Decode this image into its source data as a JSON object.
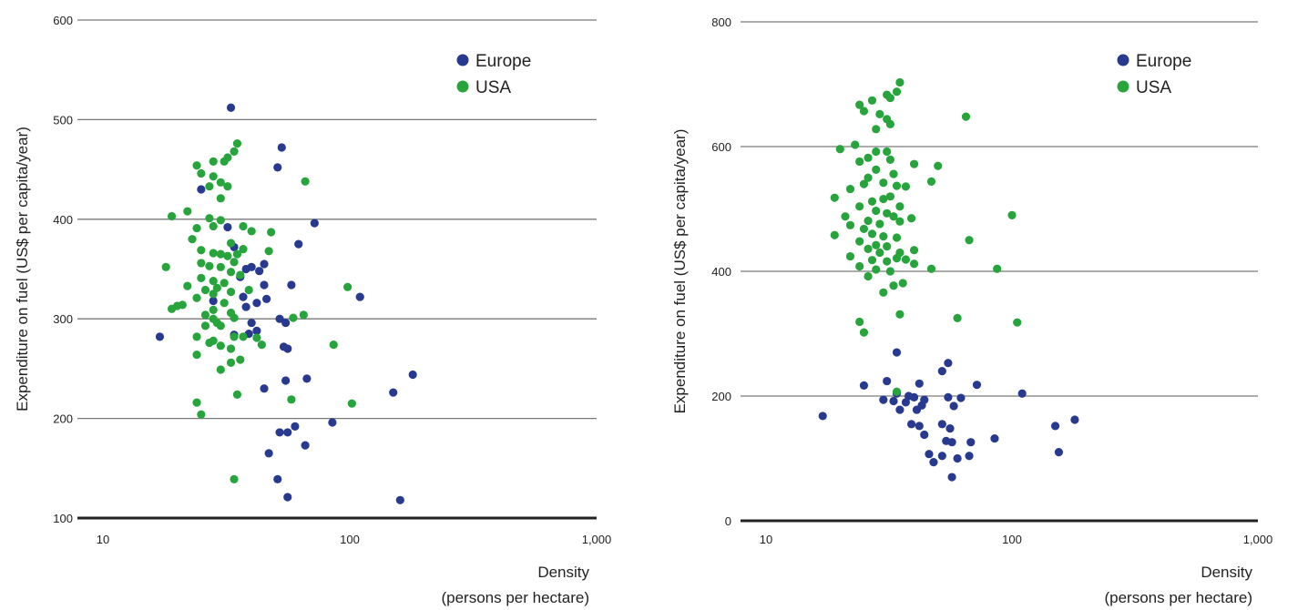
{
  "colors": {
    "europe": "#283a8f",
    "usa": "#27a43b"
  },
  "chart_data": [
    {
      "type": "scatter",
      "x_scale": "log",
      "xlim": [
        10,
        1000
      ],
      "ylim": [
        100,
        600
      ],
      "x_ticks": [
        {
          "value": 10,
          "label": "10"
        },
        {
          "value": 100,
          "label": "100"
        },
        {
          "value": 1000,
          "label": "1,000"
        }
      ],
      "y_ticks": [
        {
          "value": 100,
          "label": "100"
        },
        {
          "value": 200,
          "label": "200"
        },
        {
          "value": 300,
          "label": "300"
        },
        {
          "value": 400,
          "label": "400"
        },
        {
          "value": 500,
          "label": "500"
        },
        {
          "value": 600,
          "label": "600"
        }
      ],
      "ylabel": "Expenditure on fuel (US$ per capita/year)",
      "xlabel": [
        "Density",
        "(persons per hectare)"
      ],
      "grid": true,
      "legend": "top-right",
      "series": [
        {
          "name": "Europe",
          "color_key": "europe",
          "points": [
            [
              33,
              512
            ],
            [
              53,
              472
            ],
            [
              51,
              452
            ],
            [
              25,
              430
            ],
            [
              72,
              396
            ],
            [
              62,
              375
            ],
            [
              32,
              392
            ],
            [
              34,
              372
            ],
            [
              40,
              352
            ],
            [
              43,
              348
            ],
            [
              45,
              355
            ],
            [
              38,
              350
            ],
            [
              36,
              342
            ],
            [
              45,
              334
            ],
            [
              58,
              334
            ],
            [
              37,
              322
            ],
            [
              42,
              316
            ],
            [
              38,
              312
            ],
            [
              46,
              320
            ],
            [
              110,
              322
            ],
            [
              52,
              300
            ],
            [
              55,
              296
            ],
            [
              40,
              296
            ],
            [
              42,
              288
            ],
            [
              39,
              285
            ],
            [
              54,
              272
            ],
            [
              56,
              270
            ],
            [
              34,
              284
            ],
            [
              28,
              318
            ],
            [
              17,
              282
            ],
            [
              55,
              238
            ],
            [
              67,
              240
            ],
            [
              45,
              230
            ],
            [
              180,
              244
            ],
            [
              150,
              226
            ],
            [
              85,
              196
            ],
            [
              60,
              192
            ],
            [
              52,
              186
            ],
            [
              56,
              186
            ],
            [
              66,
              173
            ],
            [
              47,
              165
            ],
            [
              51,
              139
            ],
            [
              56,
              121
            ],
            [
              160,
              118
            ]
          ]
        },
        {
          "name": "USA",
          "color_key": "usa",
          "points": [
            [
              35,
              476
            ],
            [
              34,
              468
            ],
            [
              32,
              462
            ],
            [
              31,
              458
            ],
            [
              28,
              458
            ],
            [
              24,
              454
            ],
            [
              25,
              446
            ],
            [
              28,
              443
            ],
            [
              30,
              437
            ],
            [
              32,
              433
            ],
            [
              66,
              438
            ],
            [
              27,
              433
            ],
            [
              30,
              421
            ],
            [
              22,
              408
            ],
            [
              19,
              403
            ],
            [
              27,
              401
            ],
            [
              30,
              399
            ],
            [
              28,
              393
            ],
            [
              24,
              391
            ],
            [
              40,
              388
            ],
            [
              37,
              393
            ],
            [
              23,
              380
            ],
            [
              33,
              376
            ],
            [
              37,
              370
            ],
            [
              25,
              369
            ],
            [
              28,
              366
            ],
            [
              32,
              363
            ],
            [
              30,
              365
            ],
            [
              35,
              365
            ],
            [
              34,
              357
            ],
            [
              25,
              356
            ],
            [
              27,
              353
            ],
            [
              18,
              352
            ],
            [
              30,
              352
            ],
            [
              33,
              347
            ],
            [
              36,
              344
            ],
            [
              25,
              341
            ],
            [
              28,
              338
            ],
            [
              31,
              336
            ],
            [
              29,
              331
            ],
            [
              22,
              333
            ],
            [
              26,
              329
            ],
            [
              28,
              325
            ],
            [
              33,
              327
            ],
            [
              39,
              329
            ],
            [
              24,
              321
            ],
            [
              31,
              316
            ],
            [
              21,
              314
            ],
            [
              19,
              310
            ],
            [
              28,
              309
            ],
            [
              33,
              306
            ],
            [
              34,
              301
            ],
            [
              26,
              304
            ],
            [
              28,
              300
            ],
            [
              29,
              296
            ],
            [
              26,
              293
            ],
            [
              30,
              293
            ],
            [
              24,
              282
            ],
            [
              28,
              278
            ],
            [
              34,
              282
            ],
            [
              37,
              282
            ],
            [
              42,
              281
            ],
            [
              30,
              273
            ],
            [
              27,
              276
            ],
            [
              33,
              270
            ],
            [
              44,
              274
            ],
            [
              20,
              313
            ],
            [
              24,
              264
            ],
            [
              36,
              259
            ],
            [
              33,
              256
            ],
            [
              30,
              249
            ],
            [
              48,
              387
            ],
            [
              47,
              368
            ],
            [
              65,
              304
            ],
            [
              59,
              301
            ],
            [
              98,
              332
            ],
            [
              86,
              274
            ],
            [
              35,
              224
            ],
            [
              58,
              219
            ],
            [
              102,
              215
            ],
            [
              24,
              216
            ],
            [
              25,
              204
            ],
            [
              34,
              139
            ]
          ]
        }
      ]
    },
    {
      "type": "scatter",
      "x_scale": "log",
      "xlim": [
        10,
        1000
      ],
      "ylim": [
        0,
        800
      ],
      "x_ticks": [
        {
          "value": 10,
          "label": "10"
        },
        {
          "value": 100,
          "label": "100"
        },
        {
          "value": 1000,
          "label": "1,000"
        }
      ],
      "y_ticks": [
        {
          "value": 0,
          "label": "0"
        },
        {
          "value": 200,
          "label": "200"
        },
        {
          "value": 400,
          "label": "400"
        },
        {
          "value": 600,
          "label": "600"
        },
        {
          "value": 800,
          "label": "800"
        }
      ],
      "ylabel": "Expenditure on fuel (US$ per capita/year)",
      "xlabel": [
        "Density",
        "(persons per hectare)"
      ],
      "grid": true,
      "legend": "top-right",
      "series": [
        {
          "name": "Europe",
          "color_key": "europe",
          "points": [
            [
              34,
              270
            ],
            [
              55,
              253
            ],
            [
              52,
              240
            ],
            [
              31,
              224
            ],
            [
              42,
              220
            ],
            [
              72,
              218
            ],
            [
              25,
              217
            ],
            [
              34,
              204
            ],
            [
              110,
              204
            ],
            [
              38,
              200
            ],
            [
              40,
              198
            ],
            [
              44,
              194
            ],
            [
              30,
              194
            ],
            [
              33,
              192
            ],
            [
              37,
              190
            ],
            [
              55,
              198
            ],
            [
              62,
              197
            ],
            [
              43,
              185
            ],
            [
              41,
              178
            ],
            [
              58,
              184
            ],
            [
              35,
              178
            ],
            [
              17,
              168
            ],
            [
              39,
              155
            ],
            [
              42,
              152
            ],
            [
              52,
              155
            ],
            [
              56,
              148
            ],
            [
              150,
              152
            ],
            [
              180,
              162
            ],
            [
              44,
              138
            ],
            [
              54,
              128
            ],
            [
              57,
              126
            ],
            [
              68,
              126
            ],
            [
              85,
              132
            ],
            [
              46,
              107
            ],
            [
              52,
              104
            ],
            [
              60,
              100
            ],
            [
              48,
              94
            ],
            [
              67,
              104
            ],
            [
              155,
              110
            ],
            [
              57,
              70
            ]
          ]
        },
        {
          "name": "USA",
          "color_key": "usa",
          "points": [
            [
              35,
              703
            ],
            [
              34,
              688
            ],
            [
              31,
              683
            ],
            [
              32,
              678
            ],
            [
              27,
              674
            ],
            [
              24,
              667
            ],
            [
              25,
              657
            ],
            [
              29,
              652
            ],
            [
              31,
              644
            ],
            [
              32,
              636
            ],
            [
              28,
              628
            ],
            [
              65,
              648
            ],
            [
              20,
              596
            ],
            [
              23,
              603
            ],
            [
              28,
              592
            ],
            [
              31,
              592
            ],
            [
              26,
              582
            ],
            [
              24,
              576
            ],
            [
              32,
              579
            ],
            [
              40,
              572
            ],
            [
              28,
              563
            ],
            [
              50,
              569
            ],
            [
              26,
              550
            ],
            [
              33,
              556
            ],
            [
              30,
              542
            ],
            [
              34,
              537
            ],
            [
              37,
              536
            ],
            [
              25,
              540
            ],
            [
              22,
              532
            ],
            [
              47,
              544
            ],
            [
              19,
              518
            ],
            [
              27,
              512
            ],
            [
              30,
              516
            ],
            [
              32,
              520
            ],
            [
              35,
              504
            ],
            [
              24,
              504
            ],
            [
              28,
              497
            ],
            [
              31,
              493
            ],
            [
              33,
              488
            ],
            [
              21,
              488
            ],
            [
              26,
              481
            ],
            [
              29,
              476
            ],
            [
              35,
              480
            ],
            [
              39,
              485
            ],
            [
              22,
              474
            ],
            [
              25,
              468
            ],
            [
              19,
              458
            ],
            [
              27,
              460
            ],
            [
              30,
              456
            ],
            [
              34,
              454
            ],
            [
              24,
              448
            ],
            [
              28,
              442
            ],
            [
              31,
              440
            ],
            [
              26,
              436
            ],
            [
              29,
              430
            ],
            [
              35,
              430
            ],
            [
              40,
              434
            ],
            [
              22,
              424
            ],
            [
              27,
              418
            ],
            [
              31,
              416
            ],
            [
              34,
              421
            ],
            [
              37,
              419
            ],
            [
              40,
              412
            ],
            [
              24,
              408
            ],
            [
              28,
              403
            ],
            [
              32,
              400
            ],
            [
              26,
              392
            ],
            [
              36,
              381
            ],
            [
              30,
              366
            ],
            [
              33,
              377
            ],
            [
              47,
              404
            ],
            [
              100,
              490
            ],
            [
              67,
              450
            ],
            [
              87,
              404
            ],
            [
              105,
              318
            ],
            [
              60,
              325
            ],
            [
              35,
              331
            ],
            [
              24,
              319
            ],
            [
              25,
              302
            ],
            [
              34,
              207
            ]
          ]
        }
      ]
    }
  ]
}
